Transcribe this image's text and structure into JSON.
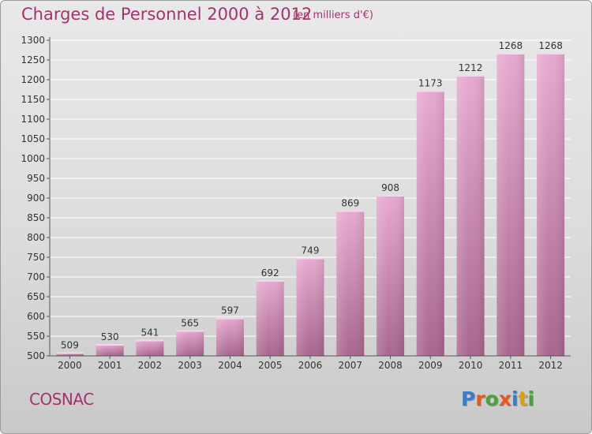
{
  "header": {
    "title": "Charges de Personnel 2000 à 2012",
    "subtitle": "(en milliers d'€)"
  },
  "footer": {
    "city": "COSNAC",
    "brand": "Proxiti"
  },
  "colors": {
    "title": "#a0346c",
    "bar_top": "#e8a9d0",
    "bar_bottom": "#a8668e",
    "brand_letters": [
      "#3b7dc4",
      "#e8581c",
      "#4aa23a",
      "#e8581c",
      "#3b7dc4",
      "#d8a20a",
      "#4aa23a"
    ]
  },
  "chart_data": {
    "type": "bar",
    "title": "Charges de Personnel 2000 à 2012",
    "subtitle": "(en milliers d'€)",
    "categories": [
      "2000",
      "2001",
      "2002",
      "2003",
      "2004",
      "2005",
      "2006",
      "2007",
      "2008",
      "2009",
      "2010",
      "2011",
      "2012"
    ],
    "values": [
      509,
      530,
      541,
      565,
      597,
      692,
      749,
      869,
      908,
      1173,
      1212,
      1268,
      1268
    ],
    "ylim": [
      500,
      1300
    ],
    "yticks": [
      500,
      550,
      600,
      650,
      700,
      750,
      800,
      850,
      900,
      950,
      1000,
      1050,
      1100,
      1150,
      1200,
      1250,
      1300
    ],
    "grid": true,
    "legend": "none"
  }
}
